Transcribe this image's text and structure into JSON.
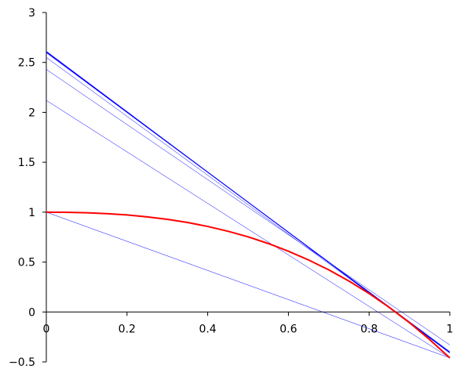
{
  "chart_data": {
    "type": "line",
    "xlim": [
      0,
      1
    ],
    "ylim": [
      -0.5,
      3
    ],
    "xticks": [
      0,
      0.2,
      0.4,
      0.6,
      0.8,
      1
    ],
    "yticks": [
      {
        "value": -0.5,
        "label": "−0.5"
      },
      0,
      0.5,
      1,
      1.5,
      2,
      2.5,
      3
    ],
    "series": [
      {
        "color": "#0000ff",
        "line_width": 0.5,
        "x": [
          0,
          1
        ],
        "values": [
          1,
          -0.46
        ]
      },
      {
        "color": "#0000ff",
        "line_width": 0.5,
        "x": [
          0,
          1
        ],
        "values": [
          2.12,
          -0.46
        ]
      },
      {
        "color": "#0000ff",
        "line_width": 0.5,
        "x": [
          0,
          1
        ],
        "values": [
          2.43,
          -0.33
        ]
      },
      {
        "color": "#0000ff",
        "line_width": 0.5,
        "x": [
          0,
          1
        ],
        "values": [
          2.55,
          -0.4
        ]
      },
      {
        "color": "#0000ff",
        "line_width": 1,
        "x": [
          0,
          1
        ],
        "values": [
          2.6,
          -0.4
        ]
      },
      {
        "color": "#0000ff",
        "line_width": 1,
        "x": [
          0,
          1
        ],
        "values": [
          2.61,
          -0.41
        ]
      },
      {
        "color": "#ff0000",
        "line_width": 2,
        "x": [
          0,
          0.05,
          0.1,
          0.15,
          0.2,
          0.25,
          0.3,
          0.35,
          0.4,
          0.45,
          0.5,
          0.55,
          0.6,
          0.65,
          0.7,
          0.75,
          0.8,
          0.85,
          0.9,
          0.95,
          1
        ],
        "values": [
          1,
          0.999,
          0.994,
          0.985,
          0.972,
          0.953,
          0.928,
          0.897,
          0.857,
          0.809,
          0.753,
          0.686,
          0.609,
          0.521,
          0.422,
          0.31,
          0.185,
          0.046,
          -0.107,
          -0.276,
          -0.46
        ]
      }
    ]
  }
}
